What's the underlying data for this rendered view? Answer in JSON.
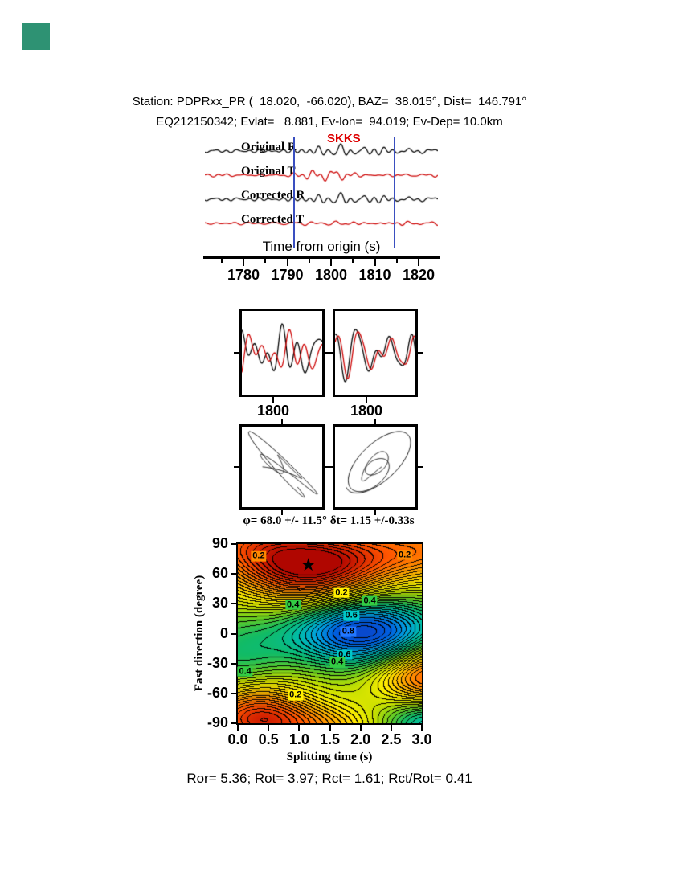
{
  "page_bg": "#ffffff",
  "corner_marker_color": "#2e9273",
  "icons": {
    "star": "★"
  },
  "header": {
    "line1": "Station: PDPRxx_PR (  18.020,  -66.020), BAZ=  38.015°, Dist=  146.791°",
    "line2": "EQ212150342; Evlat=   8.881, Ev-lon=  94.019; Ev-Dep= 10.0km"
  },
  "station_event": {
    "station": "PDPRxx_PR",
    "station_lat": 18.02,
    "station_lon": -66.02,
    "baz_deg": 38.015,
    "dist_deg": 146.791,
    "event_id": "EQ212150342",
    "ev_lat": 8.881,
    "ev_lon": 94.019,
    "ev_dep": "10.0km"
  },
  "footer": "Ror= 5.36; Rot= 3.97; Rct= 1.61; Rct/Rot= 0.41",
  "results": {
    "Ror": 5.36,
    "Rot": 3.97,
    "Rct": 1.61,
    "Rct_over_Rot": 0.41
  },
  "chart_data": [
    {
      "id": "waveforms",
      "type": "line",
      "phase_label": "SKKS",
      "phase_label_color": "#dd0000",
      "xlabel": "Time from origin (s)",
      "xticks": [
        1780,
        1790,
        1800,
        1810,
        1820
      ],
      "minor_xticks": [
        1775,
        1785,
        1795,
        1805,
        1815
      ],
      "xrange": [
        1771.2,
        1824.4
      ],
      "arrival_time": 1801,
      "traces": [
        {
          "label": "Original R",
          "color": "#000000",
          "seed": 31,
          "amp": 15,
          "base": 0.3,
          "burst": 1.0
        },
        {
          "label": "Original T",
          "color": "#cc0000",
          "seed": 52,
          "amp": 9,
          "base": 0.35,
          "burst": 0.8
        },
        {
          "label": "Corrected R",
          "color": "#000000",
          "seed": 31,
          "amp": 14,
          "base": 0.3,
          "burst": 1.0
        },
        {
          "label": "Corrected T",
          "color": "#cc0000",
          "seed": 74,
          "amp": 4.5,
          "base": 0.6,
          "burst": 0.2
        }
      ],
      "window_markers": {
        "color": "#3a4fc0",
        "times": [
          1791.5,
          1814.5
        ]
      }
    },
    {
      "id": "component_pairs",
      "type": "line",
      "xtick_label": "1800",
      "colors": {
        "black": "#000000",
        "red": "#cc0000"
      },
      "panels": [
        {
          "seed": 7,
          "red_shift": 0.09,
          "red_scale": 0.8
        },
        {
          "seed": 15,
          "red_shift": 0.03,
          "red_scale": 0.9
        }
      ]
    },
    {
      "id": "particle_motion",
      "type": "scatter",
      "panels": [
        {
          "seed": 5,
          "lag": 0.13,
          "cross": 0.5
        },
        {
          "seed": 9,
          "lag": 0.05,
          "cross": 0.22
        }
      ]
    },
    {
      "id": "misfit_contour",
      "type": "heatmap",
      "title": "φ= 68.0 +/- 11.5° δt= 1.15 +/-0.33s",
      "xlabel": "Splitting time (s)",
      "ylabel": "Fast direction (degree)",
      "xticks": [
        "0.0",
        "0.5",
        "1.0",
        "1.5",
        "2.0",
        "2.5",
        "3.0"
      ],
      "yticks": [
        90,
        60,
        30,
        0,
        -30,
        -60,
        -90
      ],
      "xrange": [
        0,
        3
      ],
      "yrange": [
        -90,
        90
      ],
      "best_fit": {
        "fast_direction_deg": 68.0,
        "fast_direction_err_deg": 11.5,
        "split_time_s": 1.15,
        "split_time_err_s": 0.33
      },
      "star": {
        "x": 1.15,
        "y": 68
      },
      "contour_interval": 0.025,
      "field_blobs": [
        {
          "a": -0.5,
          "x": 1.15,
          "y": 68,
          "sx": 0.9,
          "sy": 26
        },
        {
          "a": -0.25,
          "x": 3.2,
          "y": 85,
          "sx": 1.0,
          "sy": 22
        },
        {
          "a": -0.18,
          "x": 0.0,
          "y": 95,
          "sx": 0.7,
          "sy": 20
        },
        {
          "a": 0.46,
          "x": 2.05,
          "y": 2,
          "sx": 0.85,
          "sy": 24
        },
        {
          "a": 0.14,
          "x": 0.0,
          "y": -28,
          "sx": 0.6,
          "sy": 34
        },
        {
          "a": -0.4,
          "x": 0.25,
          "y": -82,
          "sx": 0.65,
          "sy": 24
        },
        {
          "a": -0.35,
          "x": 3.15,
          "y": -42,
          "sx": 0.6,
          "sy": 20
        },
        {
          "a": 0.24,
          "x": 3.15,
          "y": -90,
          "sx": 0.55,
          "sy": 16
        },
        {
          "a": -0.18,
          "x": 1.3,
          "y": -95,
          "sx": 0.7,
          "sy": 16
        }
      ],
      "colormap": [
        [
          0.0,
          "#a80000"
        ],
        [
          0.08,
          "#d42200"
        ],
        [
          0.16,
          "#ff5500"
        ],
        [
          0.24,
          "#ff8800"
        ],
        [
          0.32,
          "#ffbb00"
        ],
        [
          0.4,
          "#ffee00"
        ],
        [
          0.48,
          "#c8e000"
        ],
        [
          0.56,
          "#66cc22"
        ],
        [
          0.64,
          "#11bb66"
        ],
        [
          0.72,
          "#00bbaa"
        ],
        [
          0.8,
          "#00a0dd"
        ],
        [
          0.88,
          "#0060e0"
        ],
        [
          1.0,
          "#1133bb"
        ]
      ],
      "contour_labels": [
        {
          "text": "0.2",
          "x": 0.34,
          "y": 78,
          "bg": "#ff8800"
        },
        {
          "text": "0.2",
          "x": 2.72,
          "y": 79,
          "bg": "#ff8800"
        },
        {
          "text": "0.2",
          "x": 1.69,
          "y": 41,
          "bg": "#ffee00"
        },
        {
          "text": "0.4",
          "x": 0.9,
          "y": 29,
          "bg": "#33cc44"
        },
        {
          "text": "0.4",
          "x": 2.15,
          "y": 33,
          "bg": "#33cc44"
        },
        {
          "text": "0.6",
          "x": 1.85,
          "y": 18,
          "bg": "#00c8c8"
        },
        {
          "text": "0.8",
          "x": 1.8,
          "y": 2,
          "bg": "#2277ff"
        },
        {
          "text": "0.6",
          "x": 1.74,
          "y": -21,
          "bg": "#00c8c8"
        },
        {
          "text": "0.4",
          "x": 1.62,
          "y": -29,
          "bg": "#33cc44"
        },
        {
          "text": "0.2",
          "x": 0.94,
          "y": -62,
          "bg": "#ffee00"
        },
        {
          "text": "0.4",
          "x": 0.12,
          "y": -38,
          "bg": "#33cc44"
        }
      ]
    }
  ]
}
